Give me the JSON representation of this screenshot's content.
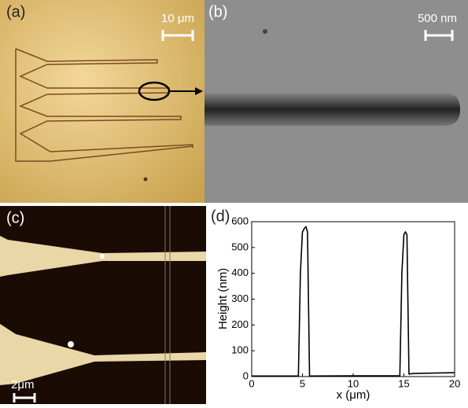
{
  "panels": [
    {
      "label": "(a)",
      "scale_bar": "10 μm"
    },
    {
      "label": "(b)",
      "scale_bar": "500 nm"
    },
    {
      "label": "(c)",
      "scale_bar": "2μm"
    },
    {
      "label": "(d)"
    }
  ],
  "chart_data": {
    "type": "line",
    "x": [
      0,
      4.6,
      4.8,
      5.0,
      5.2,
      5.35,
      5.5,
      5.7,
      10,
      14.6,
      14.8,
      15.0,
      15.15,
      15.3,
      15.5,
      16,
      20
    ],
    "values": [
      2,
      2,
      400,
      560,
      575,
      580,
      560,
      2,
      3,
      3,
      400,
      550,
      560,
      550,
      10,
      12,
      15
    ],
    "color": "#000000",
    "xlim": [
      0,
      20
    ],
    "xticks": [
      0,
      5,
      10,
      15,
      20
    ],
    "ylim": [
      0,
      600
    ],
    "yticks": [
      0,
      100,
      200,
      300,
      400,
      500,
      600
    ],
    "xlabel": "x (μm)",
    "ylabel": "Height (nm)"
  }
}
